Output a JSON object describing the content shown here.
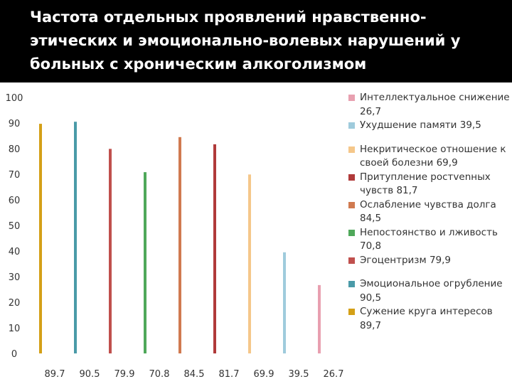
{
  "header": {
    "title": "Частота отдельных проявлений нравственно-этических и эмоционально-волевых нарушений у больных с хроническим алкоголизмом"
  },
  "chart_data": {
    "type": "bar",
    "title": "Частота отдельных проявлений нравственно-этических и эмоционально-волевых нарушений у больных с хроническим алкоголизмом",
    "xlabel": "",
    "ylabel": "",
    "ylim": [
      0,
      100
    ],
    "yticks": [
      0,
      10,
      20,
      30,
      40,
      50,
      60,
      70,
      80,
      90,
      100
    ],
    "categories": [
      "89.7",
      "90.5",
      "79.9",
      "70.8",
      "84.5",
      "81.7",
      "69.9",
      "39.5",
      "26.7"
    ],
    "grid": false,
    "legend_position": "right",
    "series": [
      {
        "name": "Сужение круга интересов 89,7",
        "value": 89.7,
        "color": "#d4a017"
      },
      {
        "name": "Эмоциональное огрубление 90,5",
        "value": 90.5,
        "color": "#4a9aa8"
      },
      {
        "name": "Эгоцентризм 79,9",
        "value": 79.9,
        "color": "#c0504d"
      },
      {
        "name": "Непостоянство и лживость 70,8",
        "value": 70.8,
        "color": "#4fa85a"
      },
      {
        "name": "Ослабление чувства долга 84,5",
        "value": 84.5,
        "color": "#d07a50"
      },
      {
        "name": "Притупление ростvenных чувств 81,7",
        "value": 81.7,
        "color": "#b03a3a"
      },
      {
        "name": "Некритическое отношение к своей болезни 69,9",
        "value": 69.9,
        "color": "#f5c78a"
      },
      {
        "name": "Ухудшение памяти 39,5",
        "value": 39.5,
        "color": "#9fcbdc"
      },
      {
        "name": "Интеллектуальное снижение 26,7",
        "value": 26.7,
        "color": "#e8a0b0"
      }
    ],
    "legend": [
      {
        "label": "Интеллектуальное снижение 26,7",
        "color": "#e8a0b0"
      },
      {
        "label": "Ухудшение памяти 39,5",
        "color": "#9fcbdc"
      },
      {
        "label": "Некритическое отношение к своей болезни 69,9",
        "color": "#f5c78a"
      },
      {
        "label": "Притупление ростvenных чувств 81,7",
        "color": "#b03a3a"
      },
      {
        "label": "Ослабление чувства долга 84,5",
        "color": "#d07a50"
      },
      {
        "label": "Непостоянство и лживость 70,8",
        "color": "#4fa85a"
      },
      {
        "label": "Эгоцентризм 79,9",
        "color": "#c0504d"
      },
      {
        "label": "Эмоциональное огрубление 90,5",
        "color": "#4a9aa8"
      },
      {
        "label": "Сужение круга интересов 89,7",
        "color": "#d4a017"
      }
    ]
  }
}
